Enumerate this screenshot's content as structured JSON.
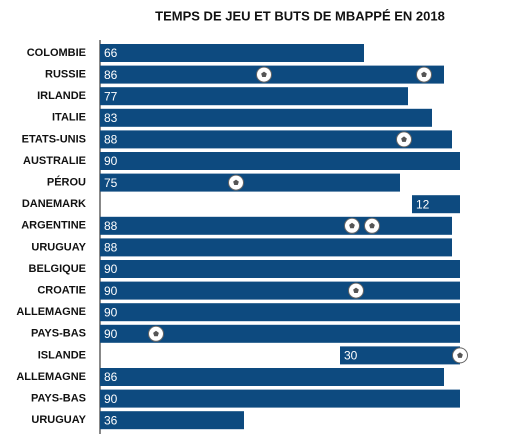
{
  "chart_data": {
    "type": "bar",
    "orientation": "horizontal",
    "title": "TEMPS DE JEU ET BUTS DE MBAPPÉ EN 2018",
    "categories": [
      "COLOMBIE",
      "RUSSIE",
      "IRLANDE",
      "ITALIE",
      "ETATS-UNIS",
      "AUSTRALIE",
      "PÉROU",
      "DANEMARK",
      "ARGENTINE",
      "URUGUAY",
      "BELGIQUE",
      "CROATIE",
      "ALLEMAGNE",
      "PAYS-BAS",
      "ISLANDE",
      "ALLEMAGNE",
      "PAYS-BAS",
      "URUGUAY"
    ],
    "start": [
      0,
      0,
      0,
      0,
      0,
      0,
      0,
      78,
      0,
      0,
      0,
      0,
      0,
      0,
      60,
      0,
      0,
      0
    ],
    "values": [
      66,
      86,
      77,
      83,
      88,
      90,
      75,
      12,
      88,
      88,
      90,
      90,
      90,
      90,
      30,
      86,
      90,
      36
    ],
    "goals": [
      [],
      [
        41,
        81
      ],
      [],
      [],
      [
        76
      ],
      [],
      [
        34
      ],
      [],
      [
        63,
        68
      ],
      [],
      [],
      [
        64
      ],
      [],
      [
        14
      ],
      [
        90
      ],
      [],
      [],
      []
    ],
    "color": "#0d4a7f",
    "xlim": [
      0,
      90
    ]
  }
}
